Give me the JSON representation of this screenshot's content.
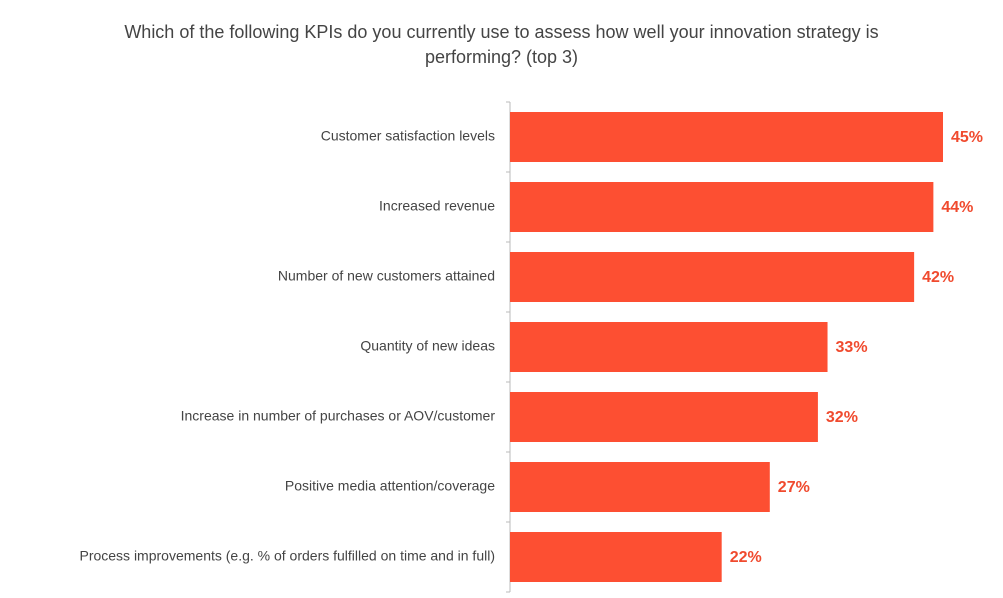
{
  "chart_data": {
    "type": "bar",
    "orientation": "horizontal",
    "title": "Which of the following KPIs do you currently use to assess how well your innovation strategy is performing? (top 3)",
    "categories": [
      "Customer satisfaction levels",
      "Increased revenue",
      "Number of new customers attained",
      "Quantity of new ideas",
      "Increase in number of purchases or AOV/customer",
      "Positive media attention/coverage",
      "Process improvements (e.g. % of orders fulfilled on time and in full)"
    ],
    "values": [
      45,
      44,
      42,
      33,
      32,
      27,
      22
    ],
    "value_labels": [
      "45%",
      "44%",
      "42%",
      "33%",
      "32%",
      "27%",
      "22%"
    ],
    "color": "#fd4f32",
    "label_color": "#f04a2e"
  }
}
